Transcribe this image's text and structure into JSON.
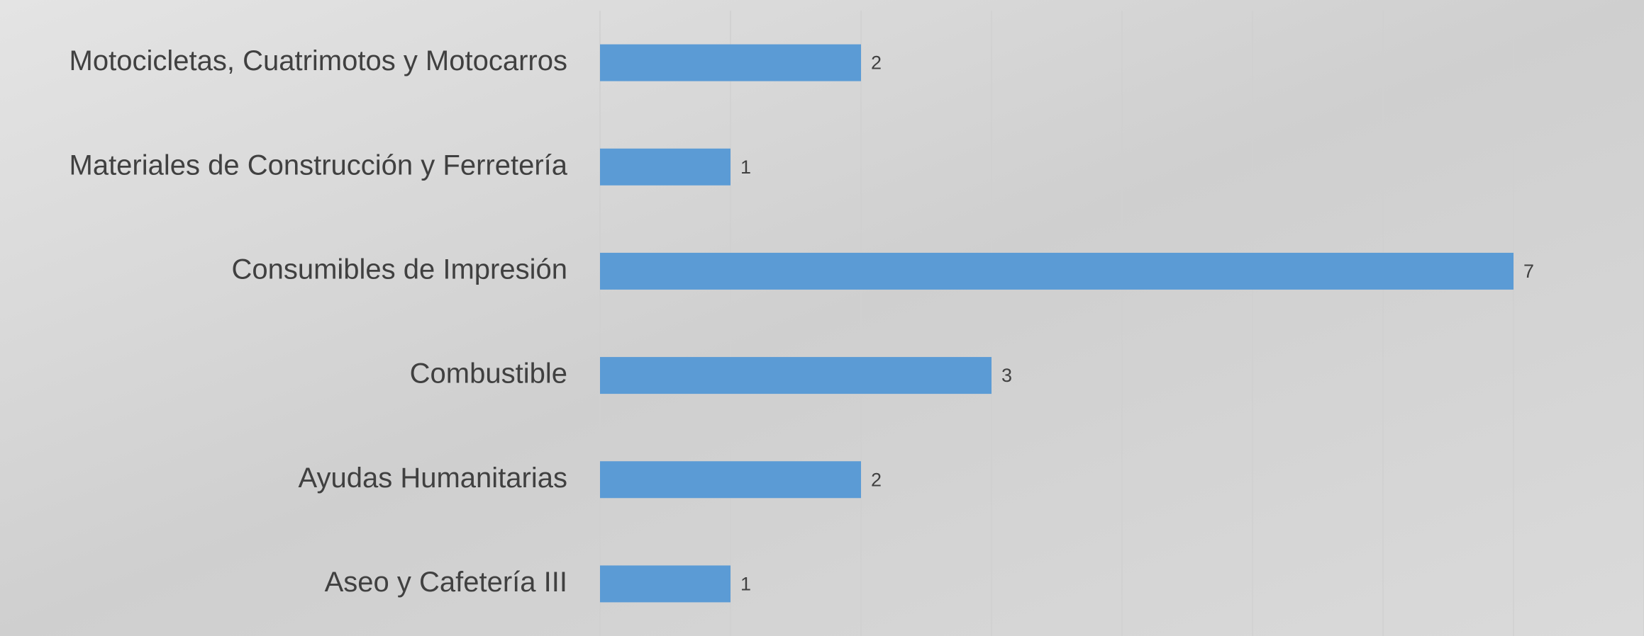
{
  "chart_data": {
    "type": "hbar",
    "categories": [
      "Motocicletas, Cuatrimotos y Motocarros",
      "Materiales de Construcción y Ferretería",
      "Consumibles de Impresión",
      "Combustible",
      "Ayudas Humanitarias",
      "Aseo y Cafetería III"
    ],
    "values": [
      2,
      1,
      7,
      3,
      2,
      1
    ],
    "color": "#5b9bd5",
    "xlim": [
      0,
      8
    ],
    "xticks": [
      0,
      1,
      2,
      3,
      4,
      5,
      6,
      7,
      8
    ],
    "grid": true
  }
}
